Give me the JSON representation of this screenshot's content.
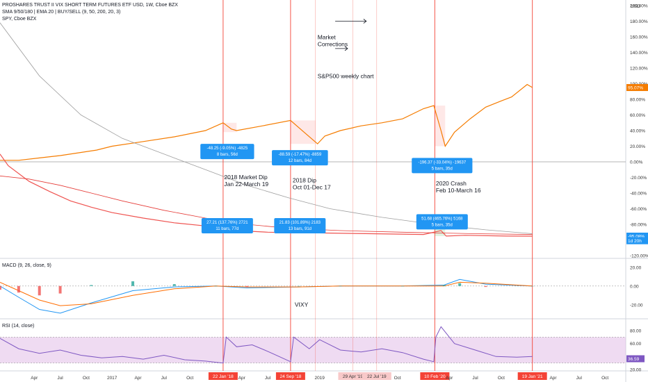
{
  "header": {
    "line1": "PROSHARES TRUST II VIX SHORT TERM FUTURES ETF USD, 1W, Cboe BZX",
    "line2": "SMA 9/50/180 | EMA 20 | BUY/SELL (9, 50, 200, 20, 3)",
    "line3": "SPY, Cboe BZX",
    "currency": "USD"
  },
  "panes": {
    "macd_label": "MACD (9, 26, close, 9)",
    "rsi_label": "RSI (14, close)"
  },
  "colors": {
    "spy": "#f57c00",
    "sma": "#e53935",
    "sma_long": "#9e9e9e",
    "vline": "#f44336",
    "tooltip": "#2196f3",
    "macd": "#2196f3",
    "signal": "#ff6d00",
    "rsi": "#7e57c2",
    "rsi_band": "#e1bee7",
    "up_bar": "#26a69a",
    "down_bar": "#ef5350"
  },
  "chart_data": {
    "type": "line",
    "main_pane": {
      "y_ticks": [
        "200.00%",
        "180.00%",
        "160.00%",
        "140.00%",
        "120.00%",
        "100.00%",
        "80.00%",
        "60.00%",
        "40.00%",
        "20.00%",
        "0.00%",
        "-20.00%",
        "-40.00%",
        "-60.00%",
        "-80.00%",
        "-100.00%",
        "-120.00%"
      ],
      "ylim": [
        -120,
        200
      ],
      "price_labels": [
        {
          "text": "95.07%",
          "value": 95.07,
          "color": "#f57c00"
        },
        {
          "text": "-95.08%",
          "value": -95.08,
          "color": "#2196f3"
        },
        {
          "text": "1d 20h",
          "value": -101,
          "color": "#2196f3"
        }
      ],
      "series": [
        {
          "name": "SPY",
          "x": [
            2015.92,
            2016.1,
            2016.3,
            2016.5,
            2016.7,
            2016.85,
            2017.0,
            2017.3,
            2017.6,
            2017.9,
            2018.07,
            2018.15,
            2018.2,
            2018.45,
            2018.72,
            2018.85,
            2018.98,
            2019.05,
            2019.2,
            2019.4,
            2019.6,
            2019.8,
            2020.0,
            2020.1,
            2020.17,
            2020.21,
            2020.3,
            2020.45,
            2020.6,
            2020.75,
            2020.85,
            2021.0,
            2021.05
          ],
          "y": [
            2,
            2,
            5,
            8,
            12,
            15,
            20,
            26,
            32,
            40,
            50,
            42,
            40,
            46,
            53,
            38,
            23,
            33,
            40,
            46,
            50,
            55,
            68,
            72,
            40,
            20,
            38,
            55,
            70,
            78,
            83,
            99,
            95.07
          ]
        },
        {
          "name": "SVXY",
          "x": [
            2015.92,
            2016.0,
            2016.2,
            2016.4,
            2016.6,
            2016.8,
            2017.0,
            2017.3,
            2017.6,
            2017.9,
            2018.07,
            2018.2,
            2018.5,
            2018.8,
            2019.0,
            2019.5,
            2020.0,
            2020.17,
            2020.22,
            2020.4,
            2020.8,
            2021.05
          ],
          "y": [
            10,
            -5,
            -25,
            -38,
            -50,
            -58,
            -65,
            -72,
            -78,
            -82,
            -84,
            -88,
            -90,
            -91,
            -91,
            -92,
            -93,
            -88,
            -95,
            -94,
            -95,
            -95.08
          ]
        },
        {
          "name": "SMA",
          "x": [
            2015.92,
            2016.2,
            2016.5,
            2016.8,
            2017.1,
            2017.5,
            2017.9,
            2018.3,
            2018.7,
            2019.2,
            2019.8,
            2020.5,
            2021.05
          ],
          "y": [
            -18,
            -22,
            -30,
            -40,
            -50,
            -62,
            -72,
            -80,
            -85,
            -88,
            -90,
            -92,
            -93
          ]
        },
        {
          "name": "SMA long",
          "x": [
            2015.92,
            2016.3,
            2016.7,
            2017.1,
            2017.5,
            2017.9,
            2018.3,
            2018.7,
            2019.1,
            2019.6,
            2020.1,
            2020.6,
            2021.05
          ],
          "y": [
            178,
            110,
            60,
            30,
            10,
            -10,
            -30,
            -46,
            -60,
            -71,
            -80,
            -87,
            -92
          ]
        }
      ]
    },
    "macd_pane": {
      "label": "MACD (9, 26, close, 9)",
      "y_ticks": [
        "20.00",
        "0.00",
        "-20.00"
      ],
      "ylim": [
        -32,
        25
      ],
      "series": [
        {
          "name": "MACD",
          "x": [
            2015.92,
            2016.1,
            2016.3,
            2016.5,
            2016.8,
            2017.2,
            2017.6,
            2018.0,
            2018.3,
            2018.8,
            2019.2,
            2019.8,
            2020.2,
            2020.35,
            2020.6,
            2021.05
          ],
          "y": [
            0,
            -12,
            -25,
            -29,
            -18,
            -5,
            -1,
            0,
            -2,
            -1,
            0,
            0,
            1,
            7,
            2,
            0
          ]
        },
        {
          "name": "Signal",
          "x": [
            2015.92,
            2016.1,
            2016.3,
            2016.5,
            2016.8,
            2017.2,
            2017.6,
            2018.0,
            2018.3,
            2018.8,
            2019.2,
            2019.8,
            2020.2,
            2020.35,
            2020.6,
            2021.05
          ],
          "y": [
            4,
            -5,
            -15,
            -21,
            -19,
            -10,
            -3,
            0,
            -1,
            -1,
            0,
            0,
            0,
            4,
            3,
            0
          ]
        }
      ]
    },
    "rsi_pane": {
      "label": "RSI (14, close)",
      "y_ticks": [
        "80.00",
        "60.00",
        "40.00",
        "20.00"
      ],
      "ylim": [
        20,
        95
      ],
      "band": [
        30,
        70
      ],
      "value_label": "36.59",
      "series": [
        {
          "name": "RSI",
          "x": [
            2015.92,
            2016.1,
            2016.3,
            2016.5,
            2016.7,
            2016.9,
            2017.1,
            2017.3,
            2017.5,
            2017.7,
            2017.9,
            2018.07,
            2018.1,
            2018.2,
            2018.35,
            2018.5,
            2018.72,
            2018.75,
            2018.9,
            2019.0,
            2019.2,
            2019.4,
            2019.6,
            2019.8,
            2020.0,
            2020.1,
            2020.12,
            2020.17,
            2020.3,
            2020.5,
            2020.7,
            2020.9,
            2021.05
          ],
          "y": [
            68,
            52,
            45,
            50,
            42,
            38,
            40,
            36,
            42,
            35,
            33,
            30,
            70,
            55,
            58,
            48,
            32,
            70,
            52,
            66,
            50,
            47,
            52,
            46,
            36,
            32,
            70,
            86,
            60,
            50,
            40,
            39,
            40
          ]
        }
      ]
    },
    "x_ticks": [
      {
        "label": "Apr",
        "x": 2016.25
      },
      {
        "label": "Jul",
        "x": 2016.5
      },
      {
        "label": "Oct",
        "x": 2016.75
      },
      {
        "label": "2017",
        "x": 2017.0
      },
      {
        "label": "Apr",
        "x": 2017.25
      },
      {
        "label": "Jul",
        "x": 2017.5
      },
      {
        "label": "Oct",
        "x": 2017.75
      },
      {
        "label": "Apr",
        "x": 2018.25
      },
      {
        "label": "Jul",
        "x": 2018.5
      },
      {
        "label": "2019",
        "x": 2019.0
      },
      {
        "label": "Oct",
        "x": 2019.75
      },
      {
        "label": "Apr",
        "x": 2020.25
      },
      {
        "label": "Jul",
        "x": 2020.5
      },
      {
        "label": "Oct",
        "x": 2020.75
      },
      {
        "label": "Apr",
        "x": 2021.25
      },
      {
        "label": "Jul",
        "x": 2021.5
      },
      {
        "label": "Oct",
        "x": 2021.75
      }
    ],
    "vlines": [
      {
        "x": 2018.07,
        "label": "22 Jan '18",
        "strong": true
      },
      {
        "x": 2018.72,
        "label": "24 Sep '18",
        "strong": true
      },
      {
        "x": 2018.96,
        "label": "",
        "strong": false
      },
      {
        "x": 2019.32,
        "label": "29 Apr '19",
        "strong": false
      },
      {
        "x": 2019.55,
        "label": "22 Jul '19",
        "strong": false
      },
      {
        "x": 2020.11,
        "label": "10 Feb '20",
        "strong": true
      },
      {
        "x": 2021.05,
        "label": "19 Jan '21",
        "strong": true
      }
    ],
    "annotations": [
      {
        "lines": [
          "Market",
          "Corrections"
        ],
        "x": 2018.98,
        "y": 157
      },
      {
        "lines": [
          "S&P500 weekly chart"
        ],
        "x": 2018.98,
        "y": 107
      },
      {
        "lines": [
          "2018 Market Dip",
          "Jan 22-March 19"
        ],
        "x": 2018.08,
        "y": -22
      },
      {
        "lines": [
          "2018 Dip",
          "Oct 01-Dec 17"
        ],
        "x": 2018.74,
        "y": -26
      },
      {
        "lines": [
          "2020 Crash",
          "Feb 10-March 16"
        ],
        "x": 2020.12,
        "y": -30
      },
      {
        "lines": [
          "VIXY"
        ],
        "x": 2018.76,
        "y": -22,
        "pane": "macd"
      }
    ],
    "tooltips": [
      {
        "lines": [
          "-48.25 (-9.05%) -4825",
          "8 bars, 56d"
        ],
        "x": 2018.11,
        "y": 23
      },
      {
        "lines": [
          "-88.59 (-17.47%) -8859",
          "12 bars, 84d"
        ],
        "x": 2018.81,
        "y": 15
      },
      {
        "lines": [
          "-196.37 (-33.04%) -19637",
          "5 bars, 35d"
        ],
        "x": 2020.18,
        "y": 5
      },
      {
        "lines": [
          "27.21 (137.76%) 2721",
          "11 bars, 77d"
        ],
        "x": 2018.11,
        "y": -72
      },
      {
        "lines": [
          "21.83 (101.89%) 2183",
          "13 bars, 91d"
        ],
        "x": 2018.81,
        "y": -72
      },
      {
        "lines": [
          "51.68 (465.76%) 5168",
          "5 bars, 35d"
        ],
        "x": 2020.18,
        "y": -67
      }
    ]
  }
}
